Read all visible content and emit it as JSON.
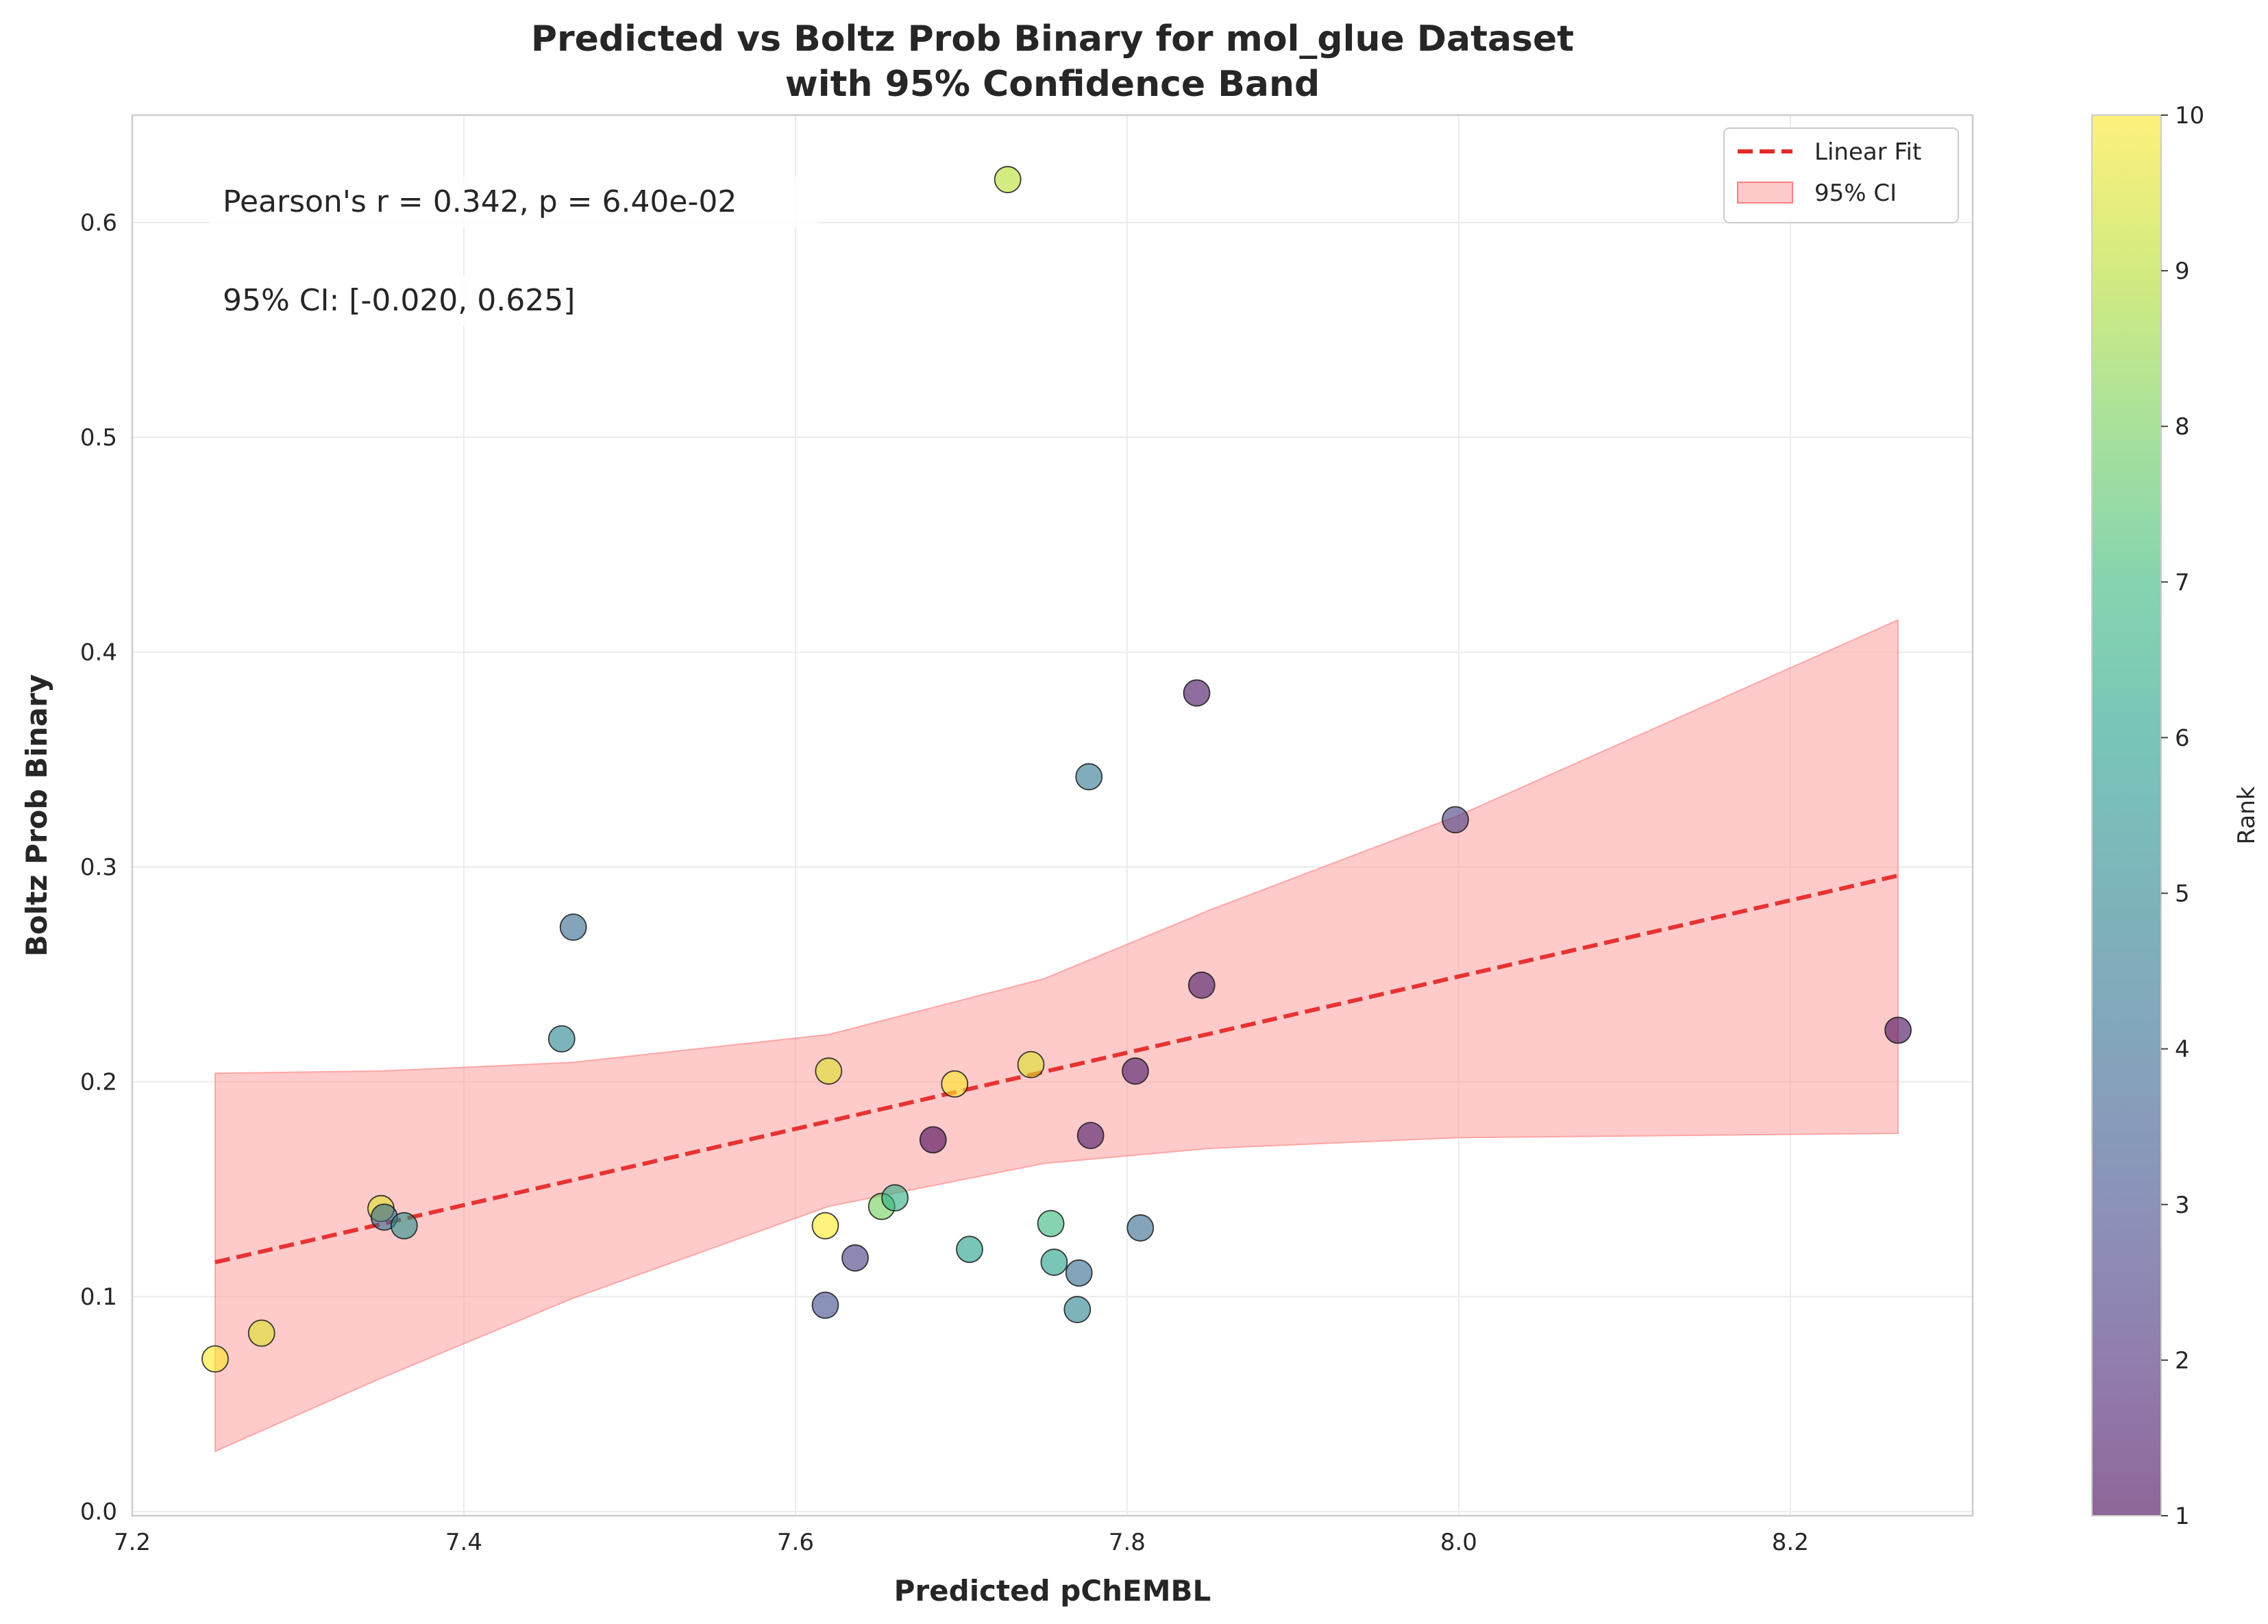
{
  "chart_data": {
    "type": "scatter",
    "title": [
      "Predicted vs Boltz Prob Binary for mol_glue Dataset",
      "with 95% Confidence Band"
    ],
    "xlabel": "Predicted pChEMBL",
    "ylabel": "Boltz Prob Binary",
    "xlim": [
      7.2,
      8.31
    ],
    "ylim": [
      -0.002,
      0.65
    ],
    "xticks": [
      7.2,
      7.4,
      7.6,
      7.8,
      8.0,
      8.2
    ],
    "xtick_labels": [
      "7.2",
      "7.4",
      "7.6",
      "7.8",
      "8.0",
      "8.2"
    ],
    "yticks": [
      0.0,
      0.1,
      0.2,
      0.3,
      0.4,
      0.5,
      0.6
    ],
    "ytick_labels": [
      "0.0",
      "0.1",
      "0.2",
      "0.3",
      "0.4",
      "0.5",
      "0.6"
    ],
    "grid": true,
    "annotations": [
      "Pearson's r = 0.342, p = 6.40e-02",
      "95% CI: [-0.020, 0.625]"
    ],
    "legend": {
      "placement": "top-right",
      "entries": [
        {
          "label": "Linear Fit",
          "kind": "line",
          "color": "#e52a2a"
        },
        {
          "label": "95% CI",
          "kind": "band",
          "color": "#ff9e9e"
        }
      ]
    },
    "fit_line": {
      "x": [
        7.25,
        8.265
      ],
      "y": [
        0.116,
        0.296
      ]
    },
    "ci_band": {
      "x": [
        7.25,
        7.35,
        7.465,
        7.62,
        7.75,
        7.85,
        8.0,
        8.265
      ],
      "upper": [
        0.204,
        0.205,
        0.209,
        0.222,
        0.248,
        0.28,
        0.324,
        0.415
      ],
      "lower": [
        0.028,
        0.062,
        0.099,
        0.142,
        0.162,
        0.169,
        0.174,
        0.176
      ]
    },
    "colorbar": {
      "label": "Rank",
      "min": 1,
      "max": 10,
      "ticks": [
        1,
        2,
        3,
        4,
        5,
        6,
        7,
        8,
        9,
        10
      ],
      "tick_labels": [
        "1",
        "2",
        "3",
        "4",
        "5",
        "6",
        "7",
        "8",
        "9",
        "10"
      ],
      "colormap": "viridis"
    },
    "points": [
      {
        "x": 7.25,
        "y": 0.071,
        "rank": 10
      },
      {
        "x": 7.278,
        "y": 0.083,
        "rank": 9.5
      },
      {
        "x": 7.35,
        "y": 0.141,
        "rank": 9.5
      },
      {
        "x": 7.352,
        "y": 0.137,
        "rank": 4
      },
      {
        "x": 7.364,
        "y": 0.133,
        "rank": 5.5
      },
      {
        "x": 7.459,
        "y": 0.22,
        "rank": 5
      },
      {
        "x": 7.466,
        "y": 0.272,
        "rank": 4
      },
      {
        "x": 7.618,
        "y": 0.096,
        "rank": 3
      },
      {
        "x": 7.618,
        "y": 0.133,
        "rank": 10
      },
      {
        "x": 7.62,
        "y": 0.205,
        "rank": 9.5
      },
      {
        "x": 7.636,
        "y": 0.118,
        "rank": 2.5
      },
      {
        "x": 7.652,
        "y": 0.142,
        "rank": 8
      },
      {
        "x": 7.66,
        "y": 0.146,
        "rank": 6.5
      },
      {
        "x": 7.683,
        "y": 0.173,
        "rank": 1
      },
      {
        "x": 7.696,
        "y": 0.199,
        "rank": 10
      },
      {
        "x": 7.705,
        "y": 0.122,
        "rank": 6
      },
      {
        "x": 7.728,
        "y": 0.62,
        "rank": 9
      },
      {
        "x": 7.742,
        "y": 0.208,
        "rank": 9.5
      },
      {
        "x": 7.754,
        "y": 0.134,
        "rank": 7
      },
      {
        "x": 7.756,
        "y": 0.116,
        "rank": 6
      },
      {
        "x": 7.77,
        "y": 0.094,
        "rank": 5
      },
      {
        "x": 7.771,
        "y": 0.111,
        "rank": 4
      },
      {
        "x": 7.777,
        "y": 0.342,
        "rank": 4.5
      },
      {
        "x": 7.778,
        "y": 0.175,
        "rank": 1.5
      },
      {
        "x": 7.805,
        "y": 0.205,
        "rank": 1.5
      },
      {
        "x": 7.808,
        "y": 0.132,
        "rank": 4
      },
      {
        "x": 7.842,
        "y": 0.381,
        "rank": 1.3
      },
      {
        "x": 7.845,
        "y": 0.245,
        "rank": 1.5
      },
      {
        "x": 7.998,
        "y": 0.322,
        "rank": 2.5
      },
      {
        "x": 8.265,
        "y": 0.224,
        "rank": 1.2
      }
    ]
  }
}
